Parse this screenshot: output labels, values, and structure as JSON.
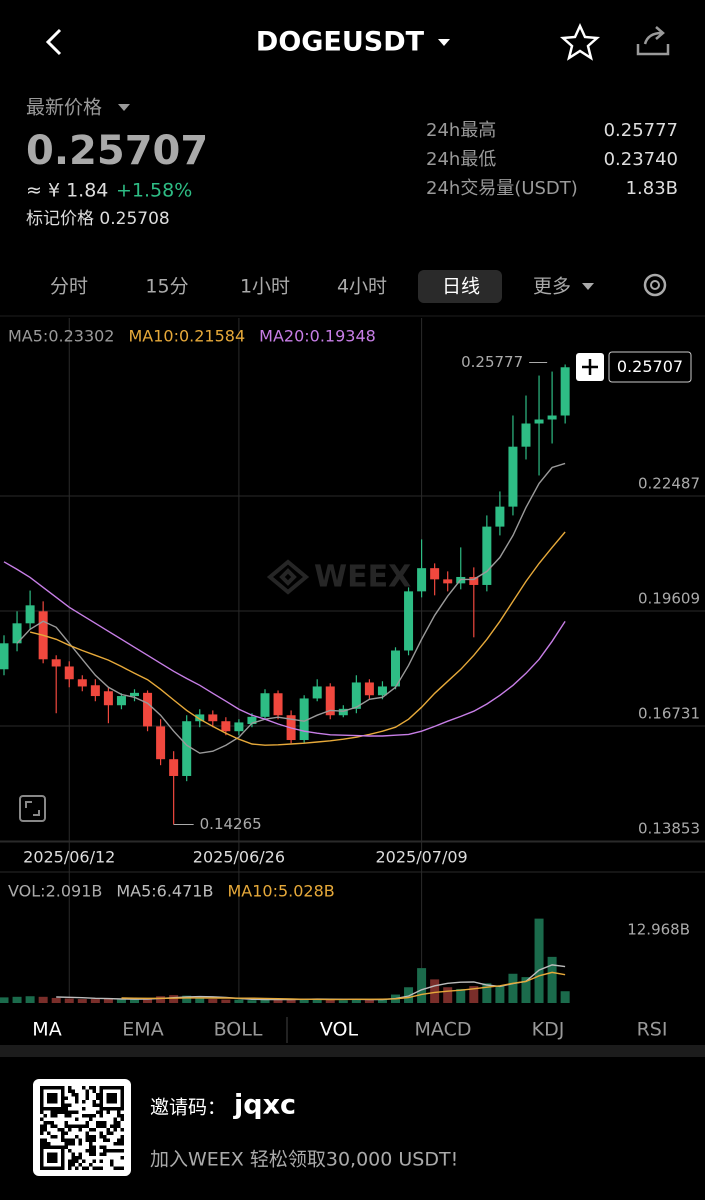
{
  "header": {
    "title": "DOGEUSDT"
  },
  "price": {
    "label": "最新价格",
    "last": "0.25707",
    "cny": "≈ ¥ 1.84",
    "change": "+1.58%",
    "mark": "标记价格 0.25708"
  },
  "stats": [
    {
      "label": "24h最高",
      "value": "0.25777"
    },
    {
      "label": "24h最低",
      "value": "0.23740"
    },
    {
      "label": "24h交易量(USDT)",
      "value": "1.83B"
    }
  ],
  "tabs": [
    "分时",
    "15分",
    "1小时",
    "4小时",
    "日线",
    "更多"
  ],
  "watermark": "WEEX",
  "chart_data": [
    {
      "type": "candlestick",
      "categories": [
        null,
        null,
        null,
        null,
        null,
        "2025/06/12",
        null,
        null,
        null,
        null,
        null,
        null,
        null,
        null,
        null,
        null,
        null,
        null,
        "2025/06/26",
        null,
        null,
        null,
        null,
        null,
        null,
        null,
        null,
        null,
        null,
        null,
        null,
        null,
        "2025/07/09",
        null,
        null,
        null,
        null,
        null,
        null,
        null,
        null,
        null,
        null,
        null
      ],
      "open": [
        0.1815,
        0.188,
        0.193,
        0.196,
        0.184,
        0.1822,
        0.179,
        0.1775,
        0.176,
        0.1725,
        0.1748,
        0.1756,
        0.1672,
        0.159,
        0.1548,
        0.1685,
        0.1702,
        0.1685,
        0.166,
        0.1678,
        0.1696,
        0.1755,
        0.17,
        0.1638,
        0.1742,
        0.1772,
        0.17,
        0.1716,
        0.1782,
        0.175,
        0.1772,
        0.1862,
        0.201,
        0.2068,
        0.204,
        0.203,
        0.2046,
        0.2026,
        0.2172,
        0.2222,
        0.2372,
        0.243,
        0.244,
        0.245
      ],
      "high": [
        0.19,
        0.196,
        0.2012,
        0.1985,
        0.185,
        0.1835,
        0.18,
        0.179,
        0.177,
        0.1755,
        0.1765,
        0.1762,
        0.169,
        0.161,
        0.17,
        0.1715,
        0.1712,
        0.1695,
        0.169,
        0.1705,
        0.1765,
        0.1762,
        0.1712,
        0.175,
        0.179,
        0.178,
        0.1725,
        0.18,
        0.179,
        0.1785,
        0.187,
        0.202,
        0.214,
        0.208,
        0.206,
        0.212,
        0.207,
        0.22,
        0.226,
        0.245,
        0.25,
        0.255,
        0.256,
        0.25777
      ],
      "low": [
        0.18,
        0.186,
        0.1915,
        0.183,
        0.1705,
        0.177,
        0.176,
        0.1735,
        0.168,
        0.1715,
        0.1735,
        0.166,
        0.1575,
        0.14265,
        0.1535,
        0.167,
        0.167,
        0.165,
        0.165,
        0.167,
        0.169,
        0.169,
        0.163,
        0.163,
        0.1735,
        0.169,
        0.1695,
        0.1705,
        0.174,
        0.174,
        0.1765,
        0.185,
        0.1995,
        0.2,
        0.201,
        0.2015,
        0.1895,
        0.201,
        0.215,
        0.22,
        0.234,
        0.23,
        0.238,
        0.243
      ],
      "close": [
        0.188,
        0.193,
        0.1975,
        0.184,
        0.1822,
        0.179,
        0.1772,
        0.1748,
        0.1725,
        0.1748,
        0.1756,
        0.1672,
        0.159,
        0.1548,
        0.1685,
        0.1702,
        0.1685,
        0.166,
        0.1682,
        0.1696,
        0.1755,
        0.17,
        0.1638,
        0.1742,
        0.1772,
        0.17,
        0.1716,
        0.1782,
        0.175,
        0.1772,
        0.1862,
        0.201,
        0.2068,
        0.204,
        0.203,
        0.2046,
        0.2026,
        0.2172,
        0.2222,
        0.2372,
        0.243,
        0.244,
        0.245,
        0.25707
      ],
      "up_color": "#2ebd85",
      "down_color": "#f0483e",
      "series": [
        {
          "label": "MA5:0.23302",
          "color": "#9a9a9a",
          "values": [
            null,
            0.188,
            0.1915,
            0.1935,
            0.192,
            0.188,
            0.184,
            0.18,
            0.177,
            0.1752,
            0.1745,
            0.173,
            0.17,
            0.166,
            0.1625,
            0.1605,
            0.161,
            0.1625,
            0.1645,
            0.168,
            0.169,
            0.1695,
            0.169,
            0.1685,
            0.17,
            0.1712,
            0.171,
            0.172,
            0.174,
            0.1745,
            0.177,
            0.1825,
            0.189,
            0.195,
            0.1998,
            0.204,
            0.204,
            0.206,
            0.2095,
            0.215,
            0.222,
            0.228,
            0.232,
            0.23302
          ]
        },
        {
          "label": "MA10:0.21584",
          "color": "#e6a93a",
          "values": [
            null,
            null,
            0.1908,
            0.19,
            0.189,
            0.1875,
            0.1862,
            0.185,
            0.1838,
            0.1822,
            0.1805,
            0.1789,
            0.1765,
            0.1738,
            0.1712,
            0.169,
            0.1672,
            0.1655,
            0.164,
            0.1628,
            0.1625,
            0.1626,
            0.1628,
            0.163,
            0.1633,
            0.1636,
            0.164,
            0.1645,
            0.1652,
            0.166,
            0.167,
            0.169,
            0.172,
            0.1755,
            0.1785,
            0.1815,
            0.185,
            0.189,
            0.1935,
            0.1985,
            0.2035,
            0.208,
            0.212,
            0.21584
          ]
        },
        {
          "label": "MA20:0.19348",
          "color": "#c77ee6",
          "values": [
            0.2084,
            0.2065,
            0.2045,
            0.202,
            0.1995,
            0.197,
            0.195,
            0.193,
            0.191,
            0.189,
            0.187,
            0.185,
            0.183,
            0.181,
            0.1792,
            0.1775,
            0.1755,
            0.1735,
            0.1715,
            0.17,
            0.169,
            0.1678,
            0.1668,
            0.166,
            0.1655,
            0.1651,
            0.165,
            0.1649,
            0.1648,
            0.1648,
            0.165,
            0.1652,
            0.166,
            0.1672,
            0.1685,
            0.1697,
            0.171,
            0.1728,
            0.175,
            0.1775,
            0.1805,
            0.184,
            0.1885,
            0.19348
          ]
        }
      ],
      "ylim": [
        0.13853,
        0.2694
      ],
      "yticks": [
        0.13853,
        0.16731,
        0.19609,
        0.22487
      ],
      "grid": true,
      "annotations": {
        "high": "0.25777",
        "low": "0.14265",
        "last": "0.25707"
      }
    },
    {
      "type": "bar",
      "values": [
        1.0,
        1.1,
        1.2,
        1.1,
        0.9,
        0.8,
        0.7,
        0.7,
        0.8,
        0.6,
        0.6,
        0.9,
        1.2,
        1.4,
        1.3,
        0.9,
        0.7,
        0.6,
        0.6,
        0.5,
        0.7,
        0.6,
        0.7,
        0.8,
        0.7,
        0.6,
        0.5,
        0.7,
        0.6,
        0.6,
        1.5,
        2.8,
        6.2,
        4.2,
        2.8,
        2.5,
        3.0,
        3.5,
        3.0,
        5.2,
        4.6,
        15.0,
        8.2,
        2.091
      ],
      "value_label": "VOL:2.091B",
      "up_color": "#1b6b4c",
      "down_color": "#7a2e2a",
      "series": [
        {
          "label": "MA5:6.471B",
          "color": "#bdbdbd",
          "values": [
            null,
            null,
            null,
            null,
            1.06,
            1.02,
            0.94,
            0.84,
            0.78,
            0.72,
            0.68,
            0.72,
            0.82,
            0.94,
            1.08,
            1.14,
            1.1,
            0.98,
            0.82,
            0.66,
            0.62,
            0.6,
            0.62,
            0.66,
            0.7,
            0.68,
            0.66,
            0.66,
            0.62,
            0.6,
            0.78,
            1.24,
            2.34,
            3.06,
            3.5,
            3.7,
            3.74,
            3.2,
            2.96,
            3.44,
            3.86,
            5.84,
            6.78,
            6.471
          ]
        },
        {
          "label": "MA10:5.028B",
          "color": "#e6a93a",
          "values": [
            null,
            null,
            null,
            null,
            null,
            null,
            null,
            null,
            null,
            0.89,
            0.85,
            0.83,
            0.83,
            0.86,
            0.9,
            0.91,
            0.89,
            0.88,
            0.86,
            0.85,
            0.82,
            0.77,
            0.72,
            0.66,
            0.65,
            0.62,
            0.64,
            0.65,
            0.66,
            0.67,
            0.75,
            0.97,
            1.53,
            1.88,
            2.09,
            2.28,
            2.53,
            2.81,
            3.05,
            3.51,
            3.82,
            4.83,
            5.44,
            5.028
          ]
        }
      ],
      "ylim": [
        0,
        19.2
      ],
      "yticks": [
        {
          "value": 12.968,
          "label": "12.968B"
        }
      ]
    }
  ],
  "indicator_tabs": [
    "MA",
    "EMA",
    "BOLL",
    "VOL",
    "MACD",
    "KDJ",
    "RSI"
  ],
  "footer": {
    "invite_label": "邀请码：",
    "code": "jqxc",
    "promo": "加入WEEX 轻松领取30,000 USDT!"
  }
}
